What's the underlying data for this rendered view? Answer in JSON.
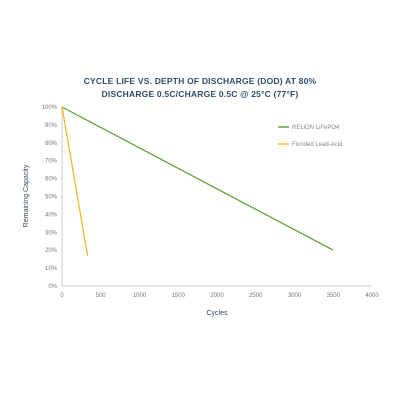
{
  "chart_data": {
    "type": "line",
    "title_lines": [
      "CYCLE LIFE VS. DEPTH OF DISCHARGE (DOD) AT 80%",
      "DISCHARGE 0.5C/CHARGE 0.5C @ 25°C (77°F)"
    ],
    "xlabel": "Cycles",
    "ylabel": "Remaining Capacity",
    "xlim": [
      0,
      4000
    ],
    "ylim": [
      0,
      100
    ],
    "x_ticks": [
      0,
      500,
      1000,
      1500,
      2000,
      2500,
      3000,
      3500,
      4000
    ],
    "x_tick_labels": [
      "0",
      "500",
      "1000",
      "1500",
      "2000",
      "2500",
      "3000",
      "3500",
      "4000"
    ],
    "y_ticks": [
      0,
      10,
      20,
      30,
      40,
      50,
      60,
      70,
      80,
      90,
      100
    ],
    "y_tick_labels": [
      "0%",
      "10%",
      "20%",
      "30%",
      "40%",
      "50%",
      "60%",
      "70%",
      "80%",
      "90%",
      "100%"
    ],
    "grid": false,
    "legend_position": "top-right",
    "series": [
      {
        "name": "RELiON LiFePO4",
        "color": "#5a9e2f",
        "x": [
          0,
          3500
        ],
        "y": [
          100,
          20
        ]
      },
      {
        "name": "Flooded Lead-Acid",
        "color": "#f0b323",
        "x": [
          0,
          330
        ],
        "y": [
          100,
          17
        ]
      }
    ]
  }
}
